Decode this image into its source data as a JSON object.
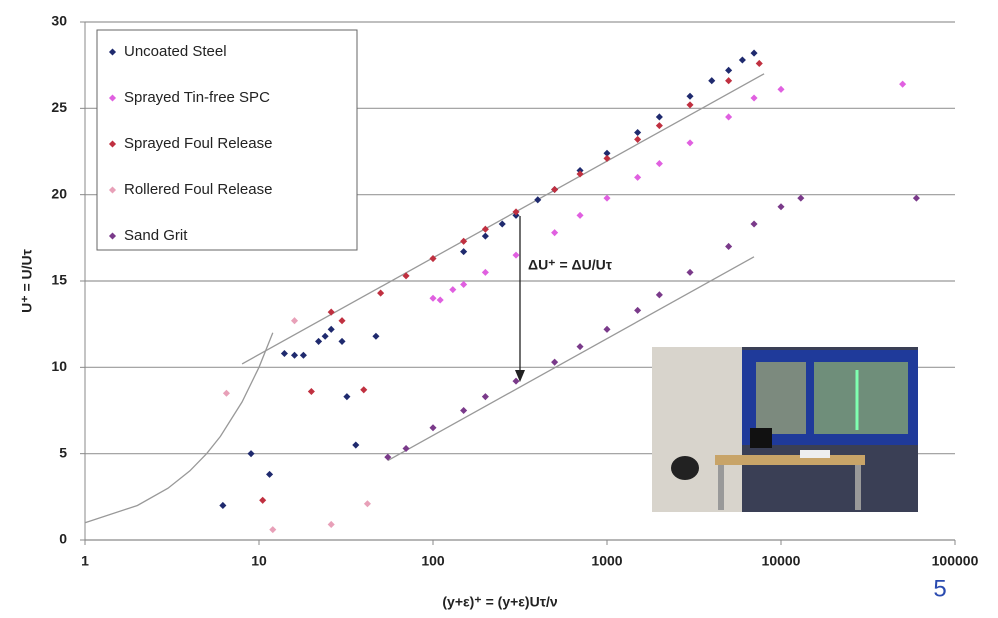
{
  "chart_data": {
    "type": "scatter",
    "xscale": "log",
    "grid": "y",
    "legend": "upper left",
    "xlabel": "(y+ε)⁺ = (y+ε)Uτ/ν",
    "ylabel": "U⁺ = U/Uτ",
    "xlim": [
      1,
      100000
    ],
    "ylim": [
      0,
      30
    ],
    "xticks": [
      1,
      10,
      100,
      1000,
      10000,
      100000
    ],
    "yticks": [
      0,
      5,
      10,
      15,
      20,
      25,
      30
    ],
    "annotation": "ΔU⁺ = ΔU/Uτ",
    "series": [
      {
        "name": "Uncoated Steel",
        "color": "#1f2a6e",
        "x": [
          6.2,
          9,
          11.5,
          14,
          16,
          18,
          22,
          24,
          26,
          30,
          32,
          36,
          47,
          150,
          200,
          250,
          300,
          400,
          500,
          700,
          1000,
          1500,
          2000,
          3000,
          4000,
          5000,
          6000,
          7000
        ],
        "y": [
          2,
          5,
          3.8,
          10.8,
          10.7,
          10.7,
          11.5,
          11.8,
          12.2,
          11.5,
          8.3,
          5.5,
          11.8,
          16.7,
          17.6,
          18.3,
          18.8,
          19.7,
          20.3,
          21.4,
          22.4,
          23.6,
          24.5,
          25.7,
          26.6,
          27.2,
          27.8,
          28.2
        ]
      },
      {
        "name": "Sprayed Tin-free SPC",
        "color": "#e060e0",
        "x": [
          100,
          110,
          130,
          150,
          200,
          300,
          500,
          700,
          1000,
          1500,
          2000,
          3000,
          5000,
          7000,
          10000,
          50000
        ],
        "y": [
          14,
          13.9,
          14.5,
          14.8,
          15.5,
          16.5,
          17.8,
          18.8,
          19.8,
          21,
          21.8,
          23,
          24.5,
          25.6,
          26.1,
          26.4
        ]
      },
      {
        "name": "Sprayed Foul Release",
        "color": "#c03040",
        "x": [
          10.5,
          20,
          26,
          30,
          40,
          50,
          70,
          100,
          150,
          200,
          300,
          500,
          700,
          1000,
          1500,
          2000,
          3000,
          5000,
          7500
        ],
        "y": [
          2.3,
          8.6,
          13.2,
          12.7,
          8.7,
          14.3,
          15.3,
          16.3,
          17.3,
          18,
          19,
          20.3,
          21.2,
          22.1,
          23.2,
          24,
          25.2,
          26.6,
          27.6
        ]
      },
      {
        "name": "Rollered Foul Release",
        "color": "#e8a0b8",
        "x": [
          6.5,
          12,
          16,
          26,
          42
        ],
        "y": [
          8.5,
          0.6,
          12.7,
          0.9,
          2.1
        ]
      },
      {
        "name": "Sand Grit",
        "color": "#7a3a8a",
        "x": [
          55,
          70,
          100,
          150,
          200,
          300,
          500,
          700,
          1000,
          1500,
          2000,
          3000,
          5000,
          7000,
          10000,
          13000,
          60000
        ],
        "y": [
          4.8,
          5.3,
          6.5,
          7.5,
          8.3,
          9.2,
          10.3,
          11.2,
          12.2,
          13.3,
          14.2,
          15.5,
          17,
          18.3,
          19.3,
          19.8,
          19.8
        ]
      }
    ],
    "reference_lines": [
      {
        "color": "#999999",
        "x": [
          8,
          8000
        ],
        "y": [
          10.2,
          27
        ]
      },
      {
        "color": "#999999",
        "x": [
          55,
          7000
        ],
        "y": [
          4.6,
          16.4
        ]
      },
      {
        "color": "#999999",
        "x": [
          1,
          2,
          3,
          4,
          5,
          6,
          8,
          10,
          12
        ],
        "y": [
          1,
          2,
          3,
          4,
          5,
          6,
          8,
          10,
          12
        ]
      }
    ]
  },
  "page_number": "5"
}
